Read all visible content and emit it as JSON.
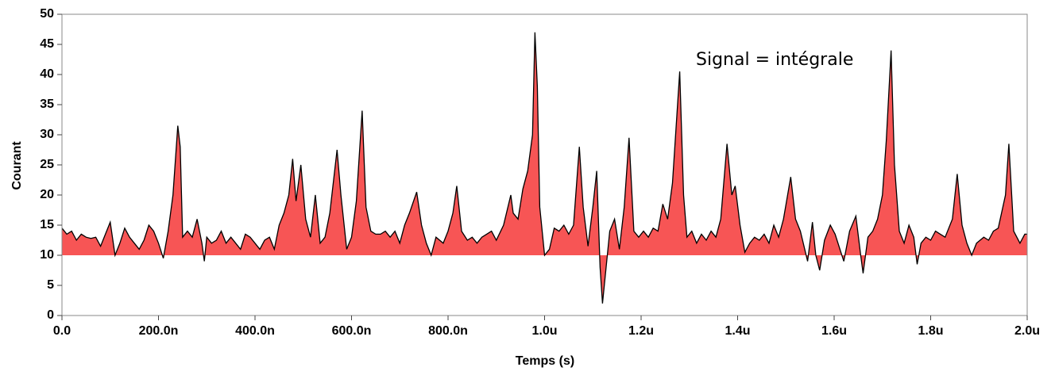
{
  "chart_data": {
    "type": "area",
    "xlabel": "Temps (s)",
    "ylabel": "Courant",
    "annotation": "Signal = intégrale",
    "color": "#f75555",
    "line_color": "#000000",
    "fill_to": 10,
    "xlim": [
      0,
      2e-06
    ],
    "ylim": [
      0,
      50
    ],
    "xticks": [
      {
        "value": 0,
        "label": "0.0"
      },
      {
        "value": 2e-07,
        "label": "200.0n"
      },
      {
        "value": 4e-07,
        "label": "400.0n"
      },
      {
        "value": 6e-07,
        "label": "600.0n"
      },
      {
        "value": 8e-07,
        "label": "800.0n"
      },
      {
        "value": 1e-06,
        "label": "1.0u"
      },
      {
        "value": 1.2e-06,
        "label": "1.2u"
      },
      {
        "value": 1.4e-06,
        "label": "1.4u"
      },
      {
        "value": 1.6e-06,
        "label": "1.6u"
      },
      {
        "value": 1.8e-06,
        "label": "1.8u"
      },
      {
        "value": 2e-06,
        "label": "2.0u"
      }
    ],
    "yticks": [
      0,
      5,
      10,
      15,
      20,
      25,
      30,
      35,
      40,
      45,
      50
    ],
    "x": [
      0,
      1e-08,
      2e-08,
      3e-08,
      4e-08,
      5e-08,
      6e-08,
      7e-08,
      8e-08,
      9e-08,
      1e-07,
      1.1e-07,
      1.2e-07,
      1.3e-07,
      1.4e-07,
      1.5e-07,
      1.6e-07,
      1.7e-07,
      1.8e-07,
      1.9e-07,
      2e-07,
      2.1e-07,
      2.2e-07,
      2.3e-07,
      2.4e-07,
      2.45e-07,
      2.5e-07,
      2.6e-07,
      2.7e-07,
      2.8e-07,
      2.9e-07,
      2.95e-07,
      3e-07,
      3.1e-07,
      3.2e-07,
      3.3e-07,
      3.4e-07,
      3.5e-07,
      3.6e-07,
      3.7e-07,
      3.8e-07,
      3.9e-07,
      4e-07,
      4.1e-07,
      4.2e-07,
      4.3e-07,
      4.4e-07,
      4.5e-07,
      4.6e-07,
      4.7e-07,
      4.78e-07,
      4.85e-07,
      4.95e-07,
      5.05e-07,
      5.15e-07,
      5.25e-07,
      5.35e-07,
      5.45e-07,
      5.55e-07,
      5.7e-07,
      5.78e-07,
      5.9e-07,
      6e-07,
      6.1e-07,
      6.22e-07,
      6.3e-07,
      6.4e-07,
      6.5e-07,
      6.6e-07,
      6.7e-07,
      6.8e-07,
      6.9e-07,
      7e-07,
      7.1e-07,
      7.2e-07,
      7.35e-07,
      7.45e-07,
      7.55e-07,
      7.65e-07,
      7.75e-07,
      7.9e-07,
      8e-07,
      8.1e-07,
      8.18e-07,
      8.28e-07,
      8.4e-07,
      8.5e-07,
      8.6e-07,
      8.7e-07,
      8.8e-07,
      8.9e-07,
      9e-07,
      9.15e-07,
      9.3e-07,
      9.35e-07,
      9.45e-07,
      9.55e-07,
      9.65e-07,
      9.75e-07,
      9.8e-07,
      9.85e-07,
      9.9e-07,
      1e-06,
      1.01e-06,
      1.02e-06,
      1.03e-06,
      1.04e-06,
      1.05e-06,
      1.06e-06,
      1.072e-06,
      1.08e-06,
      1.09e-06,
      1.1e-06,
      1.108e-06,
      1.115e-06,
      1.12e-06,
      1.125e-06,
      1.135e-06,
      1.145e-06,
      1.155e-06,
      1.165e-06,
      1.175e-06,
      1.185e-06,
      1.195e-06,
      1.205e-06,
      1.215e-06,
      1.225e-06,
      1.235e-06,
      1.245e-06,
      1.255e-06,
      1.265e-06,
      1.28e-06,
      1.288e-06,
      1.295e-06,
      1.305e-06,
      1.315e-06,
      1.325e-06,
      1.335e-06,
      1.345e-06,
      1.355e-06,
      1.365e-06,
      1.378e-06,
      1.388e-06,
      1.395e-06,
      1.405e-06,
      1.415e-06,
      1.425e-06,
      1.435e-06,
      1.445e-06,
      1.455e-06,
      1.465e-06,
      1.475e-06,
      1.485e-06,
      1.495e-06,
      1.51e-06,
      1.52e-06,
      1.53e-06,
      1.545e-06,
      1.555e-06,
      1.562e-06,
      1.57e-06,
      1.58e-06,
      1.592e-06,
      1.602e-06,
      1.612e-06,
      1.62e-06,
      1.632e-06,
      1.645e-06,
      1.655e-06,
      1.66e-06,
      1.67e-06,
      1.68e-06,
      1.69e-06,
      1.7e-06,
      1.708e-06,
      1.718e-06,
      1.725e-06,
      1.735e-06,
      1.745e-06,
      1.755e-06,
      1.765e-06,
      1.772e-06,
      1.78e-06,
      1.79e-06,
      1.8e-06,
      1.81e-06,
      1.82e-06,
      1.83e-06,
      1.845e-06,
      1.855e-06,
      1.865e-06,
      1.875e-06,
      1.885e-06,
      1.895e-06,
      1.91e-06,
      1.92e-06,
      1.93e-06,
      1.94e-06,
      1.955e-06,
      1.962e-06,
      1.972e-06,
      1.985e-06,
      1.995e-06,
      2e-06
    ],
    "values": [
      14.5,
      13.5,
      14,
      12.5,
      13.5,
      13,
      12.8,
      13,
      11.5,
      13.5,
      15.5,
      10,
      12,
      14.5,
      13,
      12,
      11,
      12.5,
      15,
      14,
      12,
      9.5,
      14,
      20,
      31.5,
      28,
      13,
      14,
      13,
      16,
      12,
      9,
      13,
      12,
      12.5,
      14,
      12,
      13,
      12,
      11,
      13.5,
      13,
      12,
      11,
      12.5,
      13,
      11,
      15,
      17,
      20,
      26,
      19,
      25,
      16,
      13,
      20,
      12,
      13,
      17,
      27.5,
      20,
      11,
      13,
      19,
      34,
      18,
      14,
      13.5,
      13.5,
      14,
      13,
      14,
      12,
      15,
      17,
      20.5,
      15,
      12,
      10,
      13,
      12,
      14,
      17,
      21.5,
      14,
      12.5,
      13,
      12,
      13,
      13.5,
      14,
      12.5,
      15,
      20,
      17,
      16,
      21,
      24,
      30,
      47,
      38,
      18,
      10,
      11,
      14.5,
      14,
      15,
      13.5,
      15,
      28,
      18,
      11.5,
      18,
      24,
      8,
      2,
      6,
      14,
      16,
      11,
      18,
      29.5,
      14,
      13,
      14,
      13,
      14.5,
      14,
      18.5,
      16,
      22,
      40.5,
      20,
      13,
      14,
      12,
      13.5,
      12.5,
      14,
      13,
      16,
      28.5,
      20,
      21.5,
      15,
      10.5,
      12,
      13,
      12.5,
      13.5,
      12,
      15,
      13,
      16,
      23,
      16,
      14,
      9,
      15.5,
      10,
      7.5,
      12.5,
      15,
      13.5,
      11,
      9,
      14,
      16.5,
      10,
      7,
      13,
      14,
      16,
      20,
      29,
      44,
      25,
      14,
      12,
      15,
      13,
      8.5,
      12,
      13,
      12.5,
      14,
      13.5,
      13,
      16,
      23.5,
      15,
      12,
      10,
      12,
      13,
      12.5,
      14,
      14.5,
      20,
      28.5,
      14,
      12,
      13.5,
      13.5
    ]
  }
}
